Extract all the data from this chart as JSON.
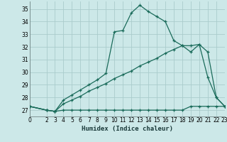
{
  "xlabel": "Humidex (Indice chaleur)",
  "background_color": "#cce8e8",
  "grid_color": "#aacccc",
  "line_color": "#1a6b5a",
  "xlim": [
    0,
    23
  ],
  "ylim": [
    26.5,
    35.6
  ],
  "xticks": [
    0,
    2,
    3,
    4,
    5,
    6,
    7,
    8,
    9,
    10,
    11,
    12,
    13,
    14,
    15,
    16,
    17,
    18,
    19,
    20,
    21,
    22,
    23
  ],
  "yticks": [
    27,
    28,
    29,
    30,
    31,
    32,
    33,
    34,
    35
  ],
  "curve1_x": [
    0,
    2,
    3,
    4,
    5,
    6,
    7,
    8,
    9,
    10,
    11,
    12,
    13,
    14,
    15,
    16,
    17,
    18,
    19,
    20,
    21,
    22,
    23
  ],
  "curve1_y": [
    27.3,
    27.0,
    26.9,
    27.8,
    28.2,
    28.6,
    29.0,
    29.4,
    29.9,
    33.2,
    33.3,
    34.7,
    35.3,
    34.8,
    34.4,
    34.0,
    32.5,
    32.1,
    31.6,
    32.2,
    29.6,
    28.0,
    27.3
  ],
  "curve2_x": [
    0,
    2,
    3,
    4,
    5,
    6,
    7,
    8,
    9,
    10,
    11,
    12,
    13,
    14,
    15,
    16,
    17,
    18,
    19,
    20,
    21,
    22,
    23
  ],
  "curve2_y": [
    27.3,
    27.0,
    26.9,
    27.5,
    27.8,
    28.1,
    28.5,
    28.8,
    29.1,
    29.5,
    29.8,
    30.1,
    30.5,
    30.8,
    31.1,
    31.5,
    31.8,
    32.1,
    32.1,
    32.2,
    31.6,
    28.0,
    27.3
  ],
  "curve3_x": [
    0,
    2,
    3,
    4,
    5,
    6,
    7,
    8,
    9,
    10,
    11,
    12,
    13,
    14,
    15,
    16,
    17,
    18,
    19,
    20,
    21,
    22,
    23
  ],
  "curve3_y": [
    27.3,
    27.0,
    26.9,
    27.0,
    27.0,
    27.0,
    27.0,
    27.0,
    27.0,
    27.0,
    27.0,
    27.0,
    27.0,
    27.0,
    27.0,
    27.0,
    27.0,
    27.0,
    27.3,
    27.3,
    27.3,
    27.3,
    27.3
  ]
}
